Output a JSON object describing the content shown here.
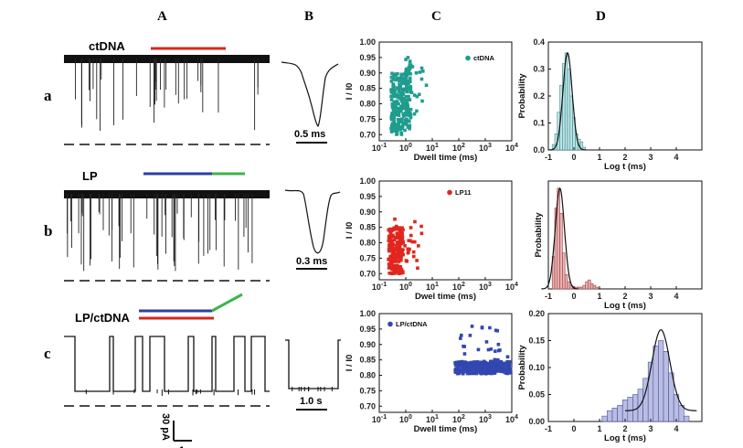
{
  "panel_labels": [
    "A",
    "B",
    "C",
    "D"
  ],
  "row_labels": [
    "a",
    "b",
    "c"
  ],
  "traces": {
    "a_label": "ctDNA",
    "b_label": "LP",
    "c_label": "LP/ctDNA",
    "scale_current": "30 pA",
    "scale_time": "1 s"
  },
  "events": {
    "a_scale": "0.5 ms",
    "b_scale": "0.3 ms",
    "c_scale": "1.0 s"
  },
  "colors": {
    "ctDNA": "#1f9c8e",
    "LP": "#e0261f",
    "LP_ctDNA": "#3347b0",
    "red_bar": "#d9261c",
    "blue_bar": "#2e3f9e",
    "green_bar": "#3bb54a",
    "hist_a": "#bfe3e4",
    "hist_b": "#e8b3b3",
    "hist_c": "#b9bde2"
  },
  "chart_data": [
    {
      "type": "scatter",
      "panel": "C-a",
      "series": [
        {
          "name": "ctDNA",
          "x": [
            0.3,
            0.35,
            0.4,
            0.45,
            0.5,
            0.55,
            0.6,
            0.7,
            0.8,
            1.0,
            1.3,
            1.8,
            2.5,
            4,
            6
          ],
          "y": [
            0.72,
            0.75,
            0.78,
            0.8,
            0.82,
            0.84,
            0.86,
            0.87,
            0.88,
            0.9,
            0.91,
            0.92,
            0.9,
            0.88,
            0.86
          ]
        }
      ],
      "xlabel": "Dwell time (ms)",
      "ylabel": "I / I0",
      "x_scale": "log",
      "xlim": [
        0.1,
        10000
      ],
      "ylim": [
        0.68,
        1.0
      ],
      "xticks": [
        "10-1",
        "100",
        "101",
        "102",
        "103",
        "104"
      ],
      "yticks": [
        "0.70",
        "0.75",
        "0.80",
        "0.85",
        "0.90",
        "0.95",
        "1.00"
      ]
    },
    {
      "type": "scatter",
      "panel": "C-b",
      "series": [
        {
          "name": "LP11",
          "x": [
            0.25,
            0.3,
            0.35,
            0.4,
            0.45,
            0.5,
            0.6,
            0.8,
            1.2,
            2,
            3
          ],
          "y": [
            0.72,
            0.74,
            0.76,
            0.78,
            0.79,
            0.8,
            0.81,
            0.8,
            0.78,
            0.77,
            0.79
          ]
        }
      ],
      "xlabel": "Dwel  time (ms)",
      "ylabel": "I / I0",
      "x_scale": "log",
      "xlim": [
        0.1,
        10000
      ],
      "ylim": [
        0.68,
        1.0
      ],
      "xticks": [
        "10-1",
        "100",
        "101",
        "102",
        "103",
        "104"
      ],
      "yticks": [
        "0.70",
        "0.75",
        "0.80",
        "0.85",
        "0.90",
        "0.95",
        "1.00"
      ]
    },
    {
      "type": "scatter",
      "panel": "C-c",
      "series": [
        {
          "name": "LP/ctDNA",
          "x": [
            80,
            120,
            200,
            300,
            500,
            800,
            1200,
            2000,
            3000,
            5000,
            7000,
            9000
          ],
          "y": [
            0.82,
            0.83,
            0.82,
            0.83,
            0.82,
            0.84,
            0.83,
            0.82,
            0.85,
            0.83,
            0.86,
            0.82
          ]
        }
      ],
      "xlabel": "Dwell time (ms)",
      "ylabel": "I / I0",
      "x_scale": "log",
      "xlim": [
        0.1,
        10000
      ],
      "ylim": [
        0.68,
        1.0
      ],
      "xticks": [
        "10-1",
        "100",
        "101",
        "102",
        "103",
        "104"
      ],
      "yticks": [
        "0.70",
        "0.75",
        "0.80",
        "0.85",
        "0.90",
        "0.95",
        "1.00"
      ]
    },
    {
      "type": "bar",
      "panel": "D-a",
      "categories": [
        -0.8,
        -0.7,
        -0.6,
        -0.5,
        -0.4,
        -0.3,
        -0.2,
        -0.1,
        0.0,
        0.1,
        0.2,
        0.3,
        0.4
      ],
      "values": [
        0.02,
        0.06,
        0.14,
        0.24,
        0.32,
        0.36,
        0.3,
        0.2,
        0.12,
        0.06,
        0.04,
        0.03,
        0.01
      ],
      "fit_peak": -0.25,
      "xlabel": "Log t (ms)",
      "ylabel": "Probability",
      "xlim": [
        -1,
        5
      ],
      "ylim": [
        0,
        0.4
      ],
      "xticks": [
        "-1",
        "0",
        "1",
        "2",
        "3",
        "4"
      ],
      "yticks": [
        "0.0",
        "0.1",
        "0.2",
        "0.3",
        "0.4"
      ]
    },
    {
      "type": "bar",
      "panel": "D-b",
      "categories": [
        -0.8,
        -0.7,
        -0.6,
        -0.5,
        -0.4,
        -0.3,
        -0.2,
        -0.1,
        0.0,
        0.1,
        0.2,
        0.3,
        0.4,
        0.5,
        0.6,
        0.7,
        0.8,
        0.9
      ],
      "values": [
        0.18,
        0.45,
        0.56,
        0.42,
        0.2,
        0.08,
        0.04,
        0.02,
        0.01,
        0.01,
        0.01,
        0.01,
        0.02,
        0.04,
        0.05,
        0.03,
        0.02,
        0.01
      ],
      "fit_peak": -0.55,
      "xlabel": "Log t (ms)",
      "ylabel": "Probability",
      "xlim": [
        -1,
        5
      ],
      "ylim": [
        0,
        0.6
      ],
      "xticks": [
        "-1",
        "0",
        "1",
        "2",
        "3",
        "4"
      ],
      "yticks": []
    },
    {
      "type": "bar",
      "panel": "D-c",
      "categories": [
        1.2,
        1.4,
        1.6,
        1.8,
        2.0,
        2.2,
        2.4,
        2.6,
        2.8,
        3.0,
        3.2,
        3.4,
        3.6,
        3.8,
        4.0,
        4.2,
        4.4
      ],
      "values": [
        0.01,
        0.02,
        0.025,
        0.03,
        0.04,
        0.045,
        0.05,
        0.06,
        0.08,
        0.11,
        0.14,
        0.15,
        0.13,
        0.09,
        0.05,
        0.03,
        0.01
      ],
      "fit_peak": 3.4,
      "xlabel": "Log t (ms)",
      "ylabel": "Probability",
      "xlim": [
        -1,
        5
      ],
      "ylim": [
        0,
        0.2
      ],
      "xticks": [
        "-1",
        "0",
        "1",
        "2",
        "3",
        "4"
      ],
      "yticks": [
        "0.00",
        "0.05",
        "0.10",
        "0.15",
        "0.20"
      ]
    }
  ]
}
